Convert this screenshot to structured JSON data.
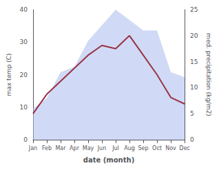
{
  "chart_data": {
    "type": "line",
    "categories": [
      "Jan",
      "Feb",
      "Mar",
      "Apr",
      "May",
      "Jun",
      "Jul",
      "Aug",
      "Sep",
      "Oct",
      "Nov",
      "Dec"
    ],
    "xlabel": "date (month)",
    "ylabel": "max temp (C)",
    "y2label": "med. precipitation (kg/m2)",
    "series": [
      {
        "type": "line",
        "color": "#993344",
        "values": [
          8,
          14,
          18,
          22,
          26,
          29,
          28,
          32,
          26,
          20,
          13,
          11
        ]
      },
      {
        "type": "area",
        "color": "#aabbee",
        "axis": "y2",
        "values": [
          6,
          8,
          13,
          14,
          19,
          22,
          25,
          23,
          21,
          21,
          13,
          12
        ]
      }
    ],
    "ylim": [
      0,
      40
    ],
    "yticks": [
      0,
      10,
      20,
      30,
      40
    ],
    "y2lim": [
      0,
      25
    ],
    "y2ticks": [
      0,
      5,
      10,
      15,
      20,
      25
    ],
    "grid": false
  }
}
